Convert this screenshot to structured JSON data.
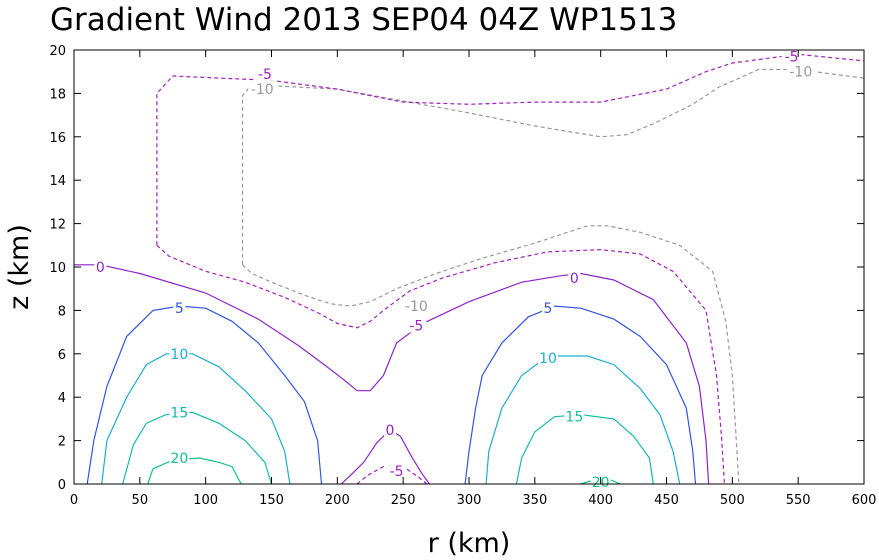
{
  "chart_data": {
    "type": "contour",
    "title": "Gradient Wind 2013 SEP04 04Z  WP1513",
    "xlabel": "r (km)",
    "ylabel": "z (km)",
    "xlim": [
      0,
      600
    ],
    "ylim": [
      0,
      20
    ],
    "xticks": [
      0,
      50,
      100,
      150,
      200,
      250,
      300,
      350,
      400,
      450,
      500,
      550,
      600
    ],
    "yticks": [
      0,
      2,
      4,
      6,
      8,
      10,
      12,
      14,
      16,
      18,
      20
    ],
    "xtick_labels": [
      "0",
      "50",
      "100",
      "150",
      "200",
      "250",
      "300",
      "350",
      "400",
      "450",
      "500",
      "550",
      "600"
    ],
    "ytick_labels": [
      "0",
      "2",
      "4",
      "6",
      "8",
      "10",
      "12",
      "14",
      "16",
      "18",
      "20"
    ],
    "grid": false,
    "contours": [
      {
        "level": -10,
        "label": "-10",
        "color": "#999999",
        "dashed": true,
        "segments": [
          [
            [
              128,
              10.1
            ],
            [
              135,
              9.7
            ],
            [
              150,
              9.3
            ],
            [
              175,
              8.7
            ],
            [
              195,
              8.3
            ],
            [
              210,
              8.2
            ],
            [
              225,
              8.4
            ],
            [
              245,
              9.0
            ],
            [
              275,
              9.7
            ],
            [
              310,
              10.4
            ],
            [
              350,
              11.1
            ],
            [
              390,
              11.9
            ],
            [
              405,
              11.9
            ],
            [
              430,
              11.6
            ],
            [
              460,
              11.0
            ],
            [
              485,
              9.8
            ],
            [
              495,
              7.5
            ],
            [
              500,
              5.0
            ],
            [
              503,
              2.0
            ],
            [
              505,
              0
            ]
          ],
          [
            [
              128,
              10.1
            ],
            [
              128,
              17.9
            ],
            [
              135,
              18.4
            ],
            [
              200,
              18.2
            ],
            [
              300,
              17.1
            ],
            [
              350,
              16.5
            ],
            [
              400,
              16.0
            ],
            [
              420,
              16.1
            ],
            [
              440,
              16.6
            ],
            [
              470,
              17.5
            ],
            [
              490,
              18.3
            ],
            [
              520,
              19.1
            ],
            [
              550,
              19.1
            ],
            [
              600,
              18.7
            ]
          ]
        ]
      },
      {
        "level": -5,
        "label": "-5",
        "color": "#a020c0",
        "dashed": true,
        "segments": [
          [
            [
              63,
              11.0
            ],
            [
              72,
              10.5
            ],
            [
              100,
              9.8
            ],
            [
              130,
              9.3
            ],
            [
              160,
              8.6
            ],
            [
              185,
              7.9
            ],
            [
              200,
              7.4
            ],
            [
              215,
              7.2
            ],
            [
              225,
              7.5
            ],
            [
              235,
              8.0
            ],
            [
              255,
              8.9
            ],
            [
              280,
              9.5
            ],
            [
              320,
              10.2
            ],
            [
              360,
              10.7
            ],
            [
              400,
              10.8
            ],
            [
              430,
              10.6
            ],
            [
              455,
              9.8
            ],
            [
              480,
              8.0
            ],
            [
              488,
              5.0
            ],
            [
              492,
              2.0
            ],
            [
              494,
              0
            ]
          ],
          [
            [
              63,
              11.0
            ],
            [
              63,
              18.0
            ],
            [
              75,
              18.8
            ],
            [
              150,
              18.6
            ],
            [
              200,
              18.2
            ],
            [
              250,
              17.6
            ],
            [
              300,
              17.5
            ],
            [
              350,
              17.6
            ],
            [
              400,
              17.6
            ],
            [
              450,
              18.2
            ],
            [
              480,
              19.0
            ],
            [
              500,
              19.4
            ],
            [
              550,
              19.8
            ],
            [
              600,
              19.5
            ]
          ],
          [
            [
              215,
              0
            ],
            [
              223,
              0.4
            ],
            [
              235,
              0.8
            ],
            [
              250,
              0.8
            ],
            [
              262,
              0.3
            ],
            [
              268,
              0
            ]
          ]
        ]
      },
      {
        "level": 0,
        "label": "0",
        "color": "#8e24c8",
        "dashed": false,
        "segments": [
          [
            [
              0,
              10.1
            ],
            [
              20,
              10.1
            ],
            [
              50,
              9.7
            ],
            [
              100,
              8.8
            ],
            [
              140,
              7.6
            ],
            [
              170,
              6.4
            ],
            [
              190,
              5.5
            ],
            [
              205,
              4.8
            ],
            [
              215,
              4.3
            ],
            [
              225,
              4.3
            ],
            [
              235,
              5.0
            ],
            [
              245,
              6.5
            ],
            [
              265,
              7.4
            ],
            [
              300,
              8.4
            ],
            [
              340,
              9.3
            ],
            [
              370,
              9.6
            ],
            [
              385,
              9.7
            ],
            [
              410,
              9.4
            ],
            [
              440,
              8.5
            ],
            [
              465,
              6.5
            ],
            [
              475,
              4.5
            ],
            [
              480,
              2.0
            ],
            [
              482,
              0
            ]
          ],
          [
            [
              203,
              0
            ],
            [
              210,
              0.4
            ],
            [
              220,
              1.0
            ],
            [
              230,
              1.9
            ],
            [
              240,
              2.5
            ],
            [
              248,
              2.2
            ],
            [
              256,
              1.3
            ],
            [
              264,
              0.5
            ],
            [
              270,
              0
            ]
          ]
        ]
      },
      {
        "level": 5,
        "label": "5",
        "color": "#3355dd",
        "dashed": false,
        "segments": [
          [
            [
              10,
              0
            ],
            [
              15,
              2.0
            ],
            [
              25,
              4.5
            ],
            [
              40,
              6.8
            ],
            [
              60,
              8.0
            ],
            [
              80,
              8.2
            ],
            [
              100,
              8.1
            ],
            [
              120,
              7.5
            ],
            [
              140,
              6.5
            ],
            [
              160,
              5.0
            ],
            [
              175,
              3.8
            ],
            [
              185,
              2.0
            ],
            [
              188,
              0
            ]
          ],
          [
            [
              297,
              0
            ],
            [
              300,
              1.5
            ],
            [
              305,
              3.5
            ],
            [
              310,
              5.0
            ],
            [
              325,
              6.5
            ],
            [
              345,
              7.7
            ],
            [
              365,
              8.2
            ],
            [
              385,
              8.1
            ],
            [
              410,
              7.6
            ],
            [
              430,
              6.8
            ],
            [
              450,
              5.5
            ],
            [
              465,
              3.5
            ],
            [
              470,
              1.5
            ],
            [
              472,
              0
            ]
          ]
        ]
      },
      {
        "level": 10,
        "label": "10",
        "color": "#1ab0d0",
        "dashed": false,
        "segments": [
          [
            [
              21,
              0
            ],
            [
              25,
              2.0
            ],
            [
              40,
              4.0
            ],
            [
              55,
              5.5
            ],
            [
              70,
              6.0
            ],
            [
              90,
              6.0
            ],
            [
              110,
              5.4
            ],
            [
              130,
              4.3
            ],
            [
              150,
              3.0
            ],
            [
              160,
              1.5
            ],
            [
              164,
              0
            ]
          ],
          [
            [
              313,
              0
            ],
            [
              315,
              1.5
            ],
            [
              325,
              3.5
            ],
            [
              340,
              5.0
            ],
            [
              360,
              5.9
            ],
            [
              390,
              5.9
            ],
            [
              410,
              5.5
            ],
            [
              430,
              4.4
            ],
            [
              445,
              3.2
            ],
            [
              455,
              1.5
            ],
            [
              460,
              0
            ]
          ]
        ]
      },
      {
        "level": 15,
        "label": "15",
        "color": "#14bca8",
        "dashed": false,
        "segments": [
          [
            [
              37,
              0
            ],
            [
              45,
              1.8
            ],
            [
              55,
              2.8
            ],
            [
              70,
              3.2
            ],
            [
              90,
              3.3
            ],
            [
              110,
              2.8
            ],
            [
              130,
              2.0
            ],
            [
              145,
              1.0
            ],
            [
              150,
              0
            ]
          ],
          [
            [
              336,
              0
            ],
            [
              340,
              1.2
            ],
            [
              350,
              2.4
            ],
            [
              365,
              3.1
            ],
            [
              385,
              3.2
            ],
            [
              410,
              3.0
            ],
            [
              425,
              2.2
            ],
            [
              437,
              1.2
            ],
            [
              440,
              0
            ]
          ]
        ]
      },
      {
        "level": 20,
        "label": "20",
        "color": "#12c488",
        "dashed": false,
        "segments": [
          [
            [
              56,
              0
            ],
            [
              60,
              0.7
            ],
            [
              75,
              1.1
            ],
            [
              95,
              1.2
            ],
            [
              110,
              1.0
            ],
            [
              120,
              0.8
            ],
            [
              127,
              0
            ]
          ],
          [
            [
              385,
              0
            ],
            [
              395,
              0.2
            ],
            [
              407,
              0.2
            ],
            [
              415,
              0
            ]
          ]
        ]
      }
    ],
    "labels": [
      {
        "text": "-10",
        "color": "#999999",
        "x": 260,
        "y": 8.2
      },
      {
        "text": "-10",
        "color": "#999999",
        "x": 143,
        "y": 18.2
      },
      {
        "text": "-10",
        "color": "#999999",
        "x": 552,
        "y": 19.0
      },
      {
        "text": "-5",
        "color": "#a020c0",
        "x": 260,
        "y": 7.3
      },
      {
        "text": "-5",
        "color": "#a020c0",
        "x": 145,
        "y": 18.9
      },
      {
        "text": "-5",
        "color": "#a020c0",
        "x": 545,
        "y": 19.7
      },
      {
        "text": "-5",
        "color": "#a020c0",
        "x": 245,
        "y": 0.6
      },
      {
        "text": "0",
        "color": "#8e24c8",
        "x": 20,
        "y": 10.0
      },
      {
        "text": "0",
        "color": "#8e24c8",
        "x": 380,
        "y": 9.5
      },
      {
        "text": "0",
        "color": "#8e24c8",
        "x": 240,
        "y": 2.5
      },
      {
        "text": "5",
        "color": "#3355dd",
        "x": 80,
        "y": 8.1
      },
      {
        "text": "5",
        "color": "#3355dd",
        "x": 360,
        "y": 8.1
      },
      {
        "text": "10",
        "color": "#1ab0d0",
        "x": 80,
        "y": 6.0
      },
      {
        "text": "10",
        "color": "#1ab0d0",
        "x": 360,
        "y": 5.8
      },
      {
        "text": "15",
        "color": "#14bca8",
        "x": 80,
        "y": 3.3
      },
      {
        "text": "15",
        "color": "#14bca8",
        "x": 380,
        "y": 3.1
      },
      {
        "text": "20",
        "color": "#12c488",
        "x": 80,
        "y": 1.2
      },
      {
        "text": "20",
        "color": "#12c488",
        "x": 400,
        "y": 0.1
      }
    ]
  }
}
